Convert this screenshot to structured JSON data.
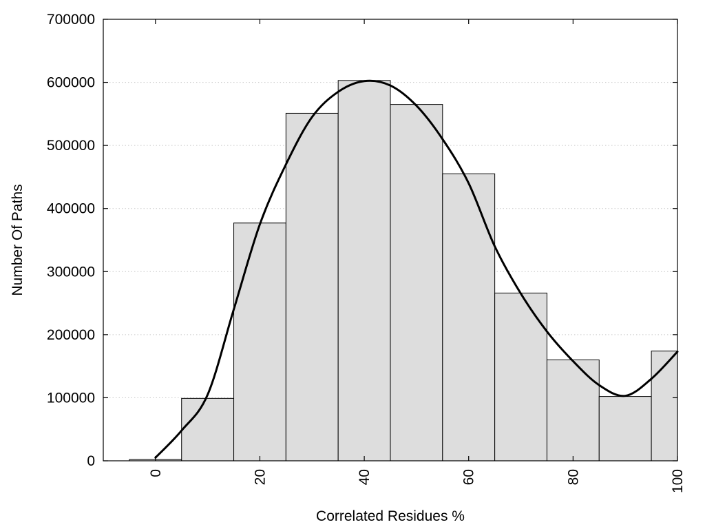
{
  "chart_data": {
    "type": "bar",
    "title": "",
    "xlabel": "Correlated Residues %",
    "ylabel": "Number Of Paths",
    "xlim": [
      -10,
      100
    ],
    "ylim": [
      0,
      700000
    ],
    "x_ticks": [
      0,
      20,
      40,
      60,
      80,
      100
    ],
    "y_ticks": [
      0,
      100000,
      200000,
      300000,
      400000,
      500000,
      600000,
      700000
    ],
    "grid": "horizontal dotted",
    "bin_width": 10,
    "categories": [
      0,
      10,
      20,
      30,
      40,
      50,
      60,
      70,
      80,
      90,
      100
    ],
    "values": [
      2000,
      99000,
      377000,
      551000,
      603000,
      565000,
      455000,
      266000,
      160000,
      102000,
      174000
    ],
    "curve": {
      "x": [
        0,
        5,
        10,
        15,
        20,
        25,
        30,
        35,
        40,
        45,
        50,
        55,
        60,
        65,
        70,
        75,
        80,
        85,
        90,
        95,
        100
      ],
      "y": [
        5000,
        48000,
        105000,
        240000,
        375000,
        470000,
        545000,
        585000,
        602000,
        595000,
        563000,
        510000,
        440000,
        340000,
        265000,
        205000,
        158000,
        120000,
        103000,
        130000,
        173000
      ]
    },
    "colors": {
      "bar_fill": "#dddddd",
      "bar_stroke": "#000000",
      "curve": "#000000",
      "grid": "#c8c8c8"
    }
  }
}
